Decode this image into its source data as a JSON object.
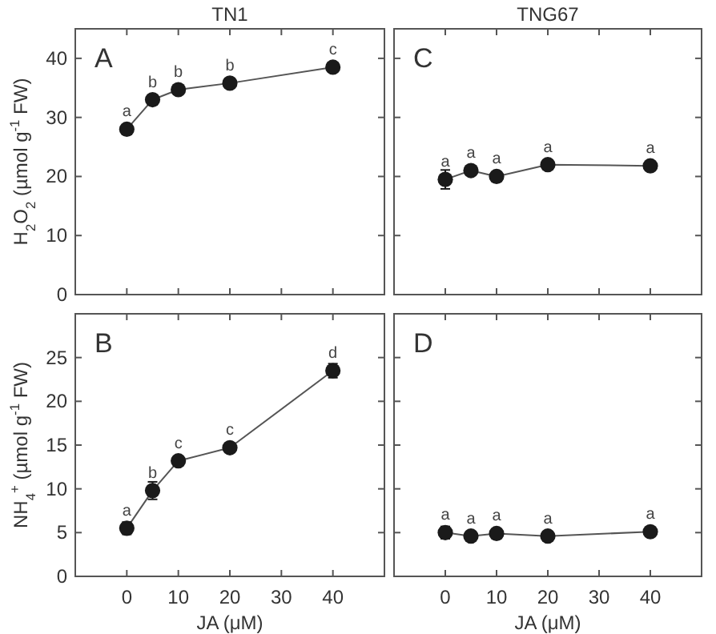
{
  "chart_data": [
    {
      "type": "line",
      "title": "TN1",
      "ylabel": "H$_{2}$O$_{2}$ (µmol g$^{-1}$ FW)",
      "x": [
        0,
        5,
        10,
        20,
        40
      ],
      "xlim": [
        -10,
        50
      ],
      "xticks": [
        0,
        10,
        20,
        30,
        40
      ],
      "ylim": [
        0,
        45
      ],
      "yticks": [
        0,
        10,
        20,
        30,
        40
      ],
      "tick_labels": "y",
      "marker": "circle",
      "grid": false,
      "series": [
        {
          "color": "#1a1a1a",
          "values": [
            28,
            33,
            34.7,
            35.8,
            38.5
          ],
          "errors": [
            null,
            null,
            null,
            null,
            null
          ]
        }
      ],
      "annotations": [
        "A",
        {
          "text": "a",
          "x": 0,
          "y": 28
        },
        {
          "text": "b",
          "x": 5,
          "y": 33
        },
        {
          "text": "b",
          "x": 10,
          "y": 34.7
        },
        {
          "text": "b",
          "x": 20,
          "y": 35.8
        },
        {
          "text": "c",
          "x": 40,
          "y": 38.5
        }
      ]
    },
    {
      "type": "line",
      "title": "TNG67",
      "x": [
        0,
        5,
        10,
        20,
        40
      ],
      "xlim": [
        -10,
        50
      ],
      "xticks": [
        0,
        10,
        20,
        30,
        40
      ],
      "ylim": [
        0,
        45
      ],
      "yticks": [
        0,
        10,
        20,
        30,
        40
      ],
      "tick_labels": false,
      "marker": "circle",
      "grid": false,
      "series": [
        {
          "color": "#1a1a1a",
          "values": [
            19.5,
            21,
            20,
            22,
            21.8
          ],
          "errors": [
            1.6,
            null,
            null,
            0.8,
            null
          ]
        }
      ],
      "annotations": [
        "C",
        {
          "text": "a",
          "x": 0,
          "y": 19.5
        },
        {
          "text": "a",
          "x": 5,
          "y": 21
        },
        {
          "text": "a",
          "x": 10,
          "y": 20
        },
        {
          "text": "a",
          "x": 20,
          "y": 22
        },
        {
          "text": "a",
          "x": 40,
          "y": 21.8
        }
      ]
    },
    {
      "type": "line",
      "xlabel": "JA (μM)",
      "ylabel": "NH$_{4}$$^{+}$ (µmol g$^{-1}$ FW)",
      "x": [
        0,
        5,
        10,
        20,
        40
      ],
      "xlim": [
        -10,
        50
      ],
      "xticks": [
        0,
        10,
        20,
        30,
        40
      ],
      "ylim": [
        0,
        30
      ],
      "yticks": [
        0,
        5,
        10,
        15,
        20,
        25
      ],
      "marker": "circle",
      "grid": false,
      "series": [
        {
          "color": "#1a1a1a",
          "values": [
            5.5,
            9.8,
            13.2,
            14.7,
            23.5
          ],
          "errors": [
            0.7,
            1,
            null,
            null,
            0.8
          ]
        }
      ],
      "annotations": [
        "B",
        {
          "text": "a",
          "x": 0,
          "y": 5.5
        },
        {
          "text": "b",
          "x": 5,
          "y": 9.8
        },
        {
          "text": "c",
          "x": 10,
          "y": 13.2
        },
        {
          "text": "c",
          "x": 20,
          "y": 14.7
        },
        {
          "text": "d",
          "x": 40,
          "y": 23.5
        }
      ]
    },
    {
      "type": "line",
      "xlabel": "JA (μM)",
      "x": [
        0,
        5,
        10,
        20,
        40
      ],
      "xlim": [
        -10,
        50
      ],
      "xticks": [
        0,
        10,
        20,
        30,
        40
      ],
      "ylim": [
        0,
        30
      ],
      "yticks": [
        0,
        5,
        10,
        15,
        20,
        25
      ],
      "tick_labels": "x",
      "marker": "circle",
      "grid": false,
      "series": [
        {
          "color": "#1a1a1a",
          "values": [
            5,
            4.6,
            4.9,
            4.6,
            5.1
          ],
          "errors": [
            0.7,
            null,
            null,
            null,
            null
          ]
        }
      ],
      "annotations": [
        "D",
        {
          "text": "a",
          "x": 0,
          "y": 5
        },
        {
          "text": "a",
          "x": 5,
          "y": 4.6
        },
        {
          "text": "a",
          "x": 10,
          "y": 4.9
        },
        {
          "text": "a",
          "x": 20,
          "y": 4.6
        },
        {
          "text": "a",
          "x": 40,
          "y": 5.1
        }
      ]
    }
  ]
}
